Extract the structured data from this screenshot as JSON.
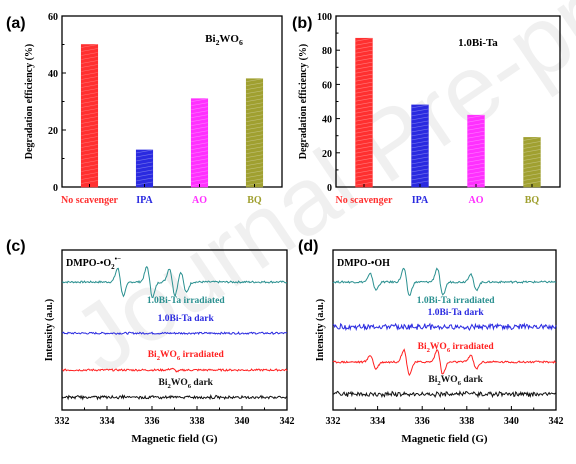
{
  "watermark": "Journal Pre-proofs",
  "chart_data": [
    {
      "panel": "(a)",
      "type": "bar",
      "inset_label": {
        "base": "Bi",
        "sub1": "2",
        "mid": "WO",
        "sub2": "6"
      },
      "ylabel": "Degradation efficiency (%)",
      "ylim": [
        0,
        60
      ],
      "yticks": [
        0,
        20,
        40,
        60
      ],
      "categories": [
        "No scavenger",
        "IPA",
        "AO",
        "BQ"
      ],
      "values": [
        50,
        13,
        31,
        38
      ],
      "colors": [
        "#ff3030",
        "#2a2ae0",
        "#ff30ff",
        "#a0a030"
      ]
    },
    {
      "panel": "(b)",
      "type": "bar",
      "inset_label": "1.0Bi-Ta",
      "ylabel": "Degradation efficiency (%)",
      "ylim": [
        0,
        100
      ],
      "yticks": [
        0,
        20,
        40,
        60,
        80,
        100
      ],
      "categories": [
        "No scavenger",
        "IPA",
        "AO",
        "BQ"
      ],
      "values": [
        87,
        48,
        42,
        29
      ],
      "colors": [
        "#ff3030",
        "#2a2ae0",
        "#ff30ff",
        "#a0a030"
      ]
    },
    {
      "panel": "(c)",
      "type": "line",
      "inset_label": {
        "base": "DMPO-•O",
        "sub": "2",
        "sup": "•−"
      },
      "xlabel": "Magnetic field (G)",
      "ylabel": "Intensity (a.u.)",
      "xlim": [
        332,
        342
      ],
      "xticks": [
        332,
        334,
        336,
        338,
        340,
        342
      ],
      "series": [
        {
          "name": "1.0Bi-Ta  irradiated",
          "color": "#2a9090",
          "baseline": 0.8,
          "amp": 0.1,
          "peaks": [
            [
              334.6,
              0.9
            ],
            [
              335.9,
              1.0
            ],
            [
              336.9,
              0.9
            ],
            [
              337.4,
              0.7
            ]
          ]
        },
        {
          "name": "1.0Bi-Ta  dark",
          "color": "#2a2ae0",
          "baseline": 0.48,
          "amp": 0.0,
          "peaks": []
        },
        {
          "name": {
            "base": "Bi",
            "sub1": "2",
            "mid": "WO",
            "sub2": "6",
            "tail": "  irradiated"
          },
          "color": "#ff2020",
          "baseline": 0.25,
          "amp": 0.015,
          "peaks": [
            [
              337.0,
              0.6
            ]
          ]
        },
        {
          "name": {
            "base": "Bi",
            "sub1": "2",
            "mid": "WO",
            "sub2": "6",
            "tail": "  dark"
          },
          "color": "#111111",
          "baseline": 0.08,
          "amp": 0.01,
          "peaks": []
        }
      ]
    },
    {
      "panel": "(d)",
      "type": "line",
      "inset_label": "DMPO-•OH",
      "xlabel": "Magnetic field (G)",
      "ylabel": "Intensity (a.u.)",
      "xlim": [
        332,
        342
      ],
      "xticks": [
        332,
        334,
        336,
        338,
        340,
        342
      ],
      "series": [
        {
          "name": "1.0Bi-Ta  irradiated",
          "color": "#2a9090",
          "baseline": 0.8,
          "amp": 0.09,
          "peaks": [
            [
              333.8,
              0.6
            ],
            [
              335.3,
              1.0
            ],
            [
              336.8,
              1.0
            ],
            [
              338.3,
              0.6
            ]
          ]
        },
        {
          "name": "1.0Bi-Ta  dark",
          "color": "#2a2ae0",
          "baseline": 0.52,
          "amp": 0.025,
          "peaks": []
        },
        {
          "name": {
            "base": "Bi",
            "sub1": "2",
            "mid": "WO",
            "sub2": "6",
            "tail": "  irradiated"
          },
          "color": "#ff2020",
          "baseline": 0.3,
          "amp": 0.09,
          "peaks": [
            [
              333.8,
              0.5
            ],
            [
              335.3,
              0.9
            ],
            [
              336.8,
              0.9
            ],
            [
              338.3,
              0.5
            ]
          ]
        },
        {
          "name": {
            "base": "Bi",
            "sub1": "2",
            "mid": "WO",
            "sub2": "6",
            "tail": "  dark"
          },
          "color": "#111111",
          "baseline": 0.1,
          "amp": 0.02,
          "peaks": []
        }
      ]
    }
  ]
}
